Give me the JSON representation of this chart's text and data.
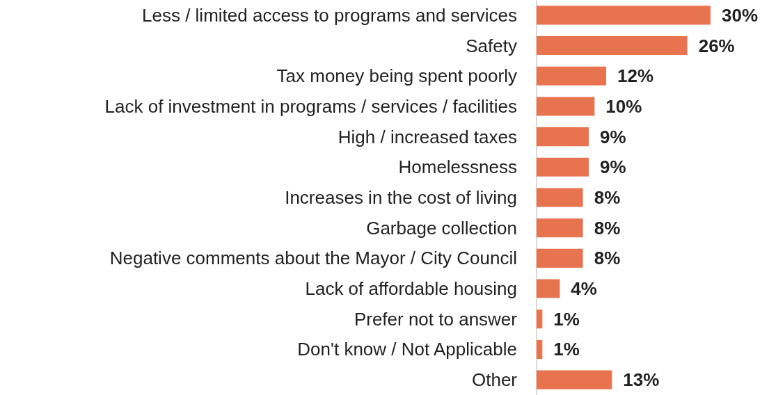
{
  "chart_data": {
    "type": "bar",
    "orientation": "horizontal",
    "categories": [
      "Less / limited access to programs and services",
      "Safety",
      "Tax money being spent poorly",
      "Lack of investment in programs / services / facilities",
      "High / increased taxes",
      "Homelessness",
      "Increases in the cost of living",
      "Garbage collection",
      "Negative comments about the Mayor / City Council",
      "Lack of affordable housing",
      "Prefer not to answer",
      "Don't know / Not Applicable",
      "Other"
    ],
    "values": [
      30,
      26,
      12,
      10,
      9,
      9,
      8,
      8,
      8,
      4,
      1,
      1,
      13
    ],
    "value_labels": [
      "30%",
      "26%",
      "12%",
      "10%",
      "9%",
      "9%",
      "8%",
      "8%",
      "8%",
      "4%",
      "1%",
      "1%",
      "13%"
    ],
    "color": "#e8734f",
    "tick_labels": "y"
  }
}
